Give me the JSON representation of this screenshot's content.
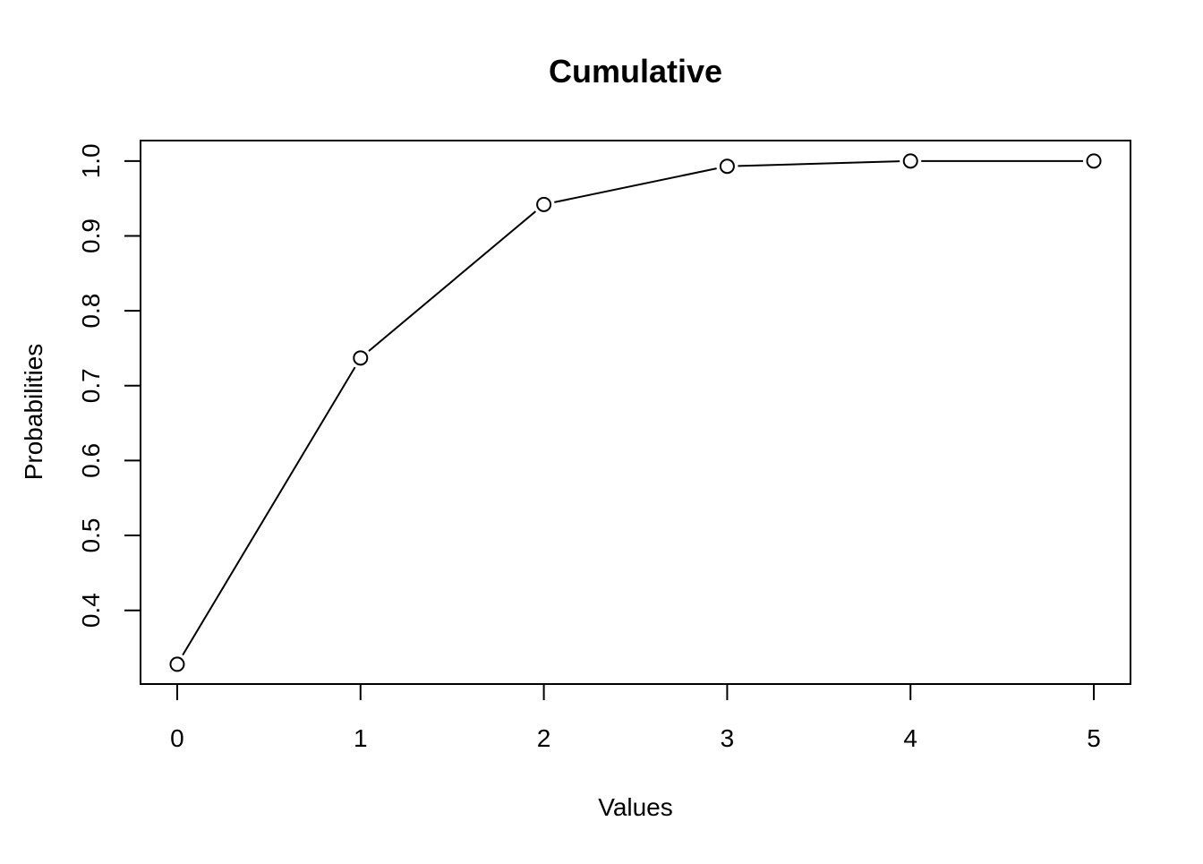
{
  "chart_data": {
    "type": "line",
    "title": "Cumulative",
    "xlabel": "Values",
    "ylabel": "Probabilities",
    "x": [
      0,
      1,
      2,
      3,
      4,
      5
    ],
    "series": [
      {
        "values": [
          0.328,
          0.737,
          0.942,
          0.993,
          1.0,
          1.0
        ]
      }
    ],
    "xticks": [
      0,
      1,
      2,
      3,
      4,
      5
    ],
    "yticks": [
      0.4,
      0.5,
      0.6,
      0.7,
      0.8,
      0.9,
      1.0
    ],
    "xtick_labels": [
      "0",
      "1",
      "2",
      "3",
      "4",
      "5"
    ],
    "ytick_labels": [
      "0.4",
      "0.5",
      "0.6",
      "0.7",
      "0.8",
      "0.9",
      "1.0"
    ],
    "xlim": [
      -0.2,
      5.2
    ],
    "ylim": [
      0.3016,
      1.0273
    ],
    "grid": false,
    "marker": "open-circle",
    "color": "#000000"
  }
}
